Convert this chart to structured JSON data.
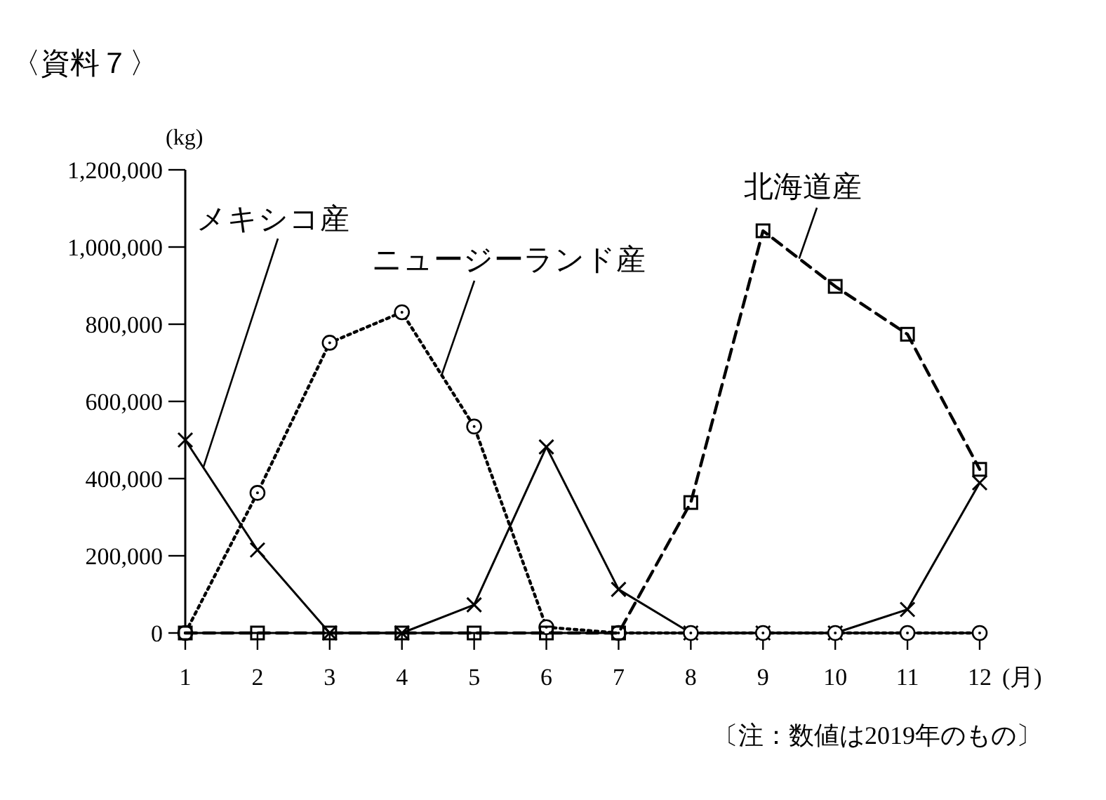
{
  "chart_data": {
    "type": "line",
    "title": "〈資料７〉",
    "ylabel": "(kg)",
    "xlabel": "(月)",
    "annotations": [
      "〔注：数値は2019年のもの〕"
    ],
    "x": [
      1,
      2,
      3,
      4,
      5,
      6,
      7,
      8,
      9,
      10,
      11,
      12
    ],
    "xlim": [
      1,
      12
    ],
    "xticks": [
      1,
      2,
      3,
      4,
      5,
      6,
      7,
      8,
      9,
      10,
      11,
      12
    ],
    "ylim": [
      0,
      1200000
    ],
    "yticks": [
      {
        "value": 0,
        "label": "0"
      },
      {
        "value": 200000,
        "label": "200,000"
      },
      {
        "value": 400000,
        "label": "400,000"
      },
      {
        "value": 600000,
        "label": "600,000"
      },
      {
        "value": 800000,
        "label": "800,000"
      },
      {
        "value": 1000000,
        "label": "1,000,000"
      },
      {
        "value": 1200000,
        "label": "1,200,000"
      }
    ],
    "grid": false,
    "legend": false,
    "series": [
      {
        "name": "メキシコ産",
        "color": "#000000",
        "marker": "cross",
        "line_style": "solid",
        "values": [
          500000,
          215000,
          0,
          0,
          73000,
          482000,
          113000,
          0,
          0,
          0,
          61000,
          389000
        ]
      },
      {
        "name": "ニュージーランド産",
        "color": "#000000",
        "marker": "circle",
        "line_style": "dotted",
        "values": [
          0,
          363000,
          752000,
          831000,
          535000,
          15000,
          0,
          0,
          0,
          0,
          0,
          0
        ]
      },
      {
        "name": "北海道産",
        "color": "#000000",
        "marker": "square",
        "line_style": "dashed",
        "values": [
          0,
          0,
          0,
          0,
          0,
          0,
          0,
          338000,
          1042000,
          898000,
          774000,
          424000
        ]
      }
    ]
  }
}
